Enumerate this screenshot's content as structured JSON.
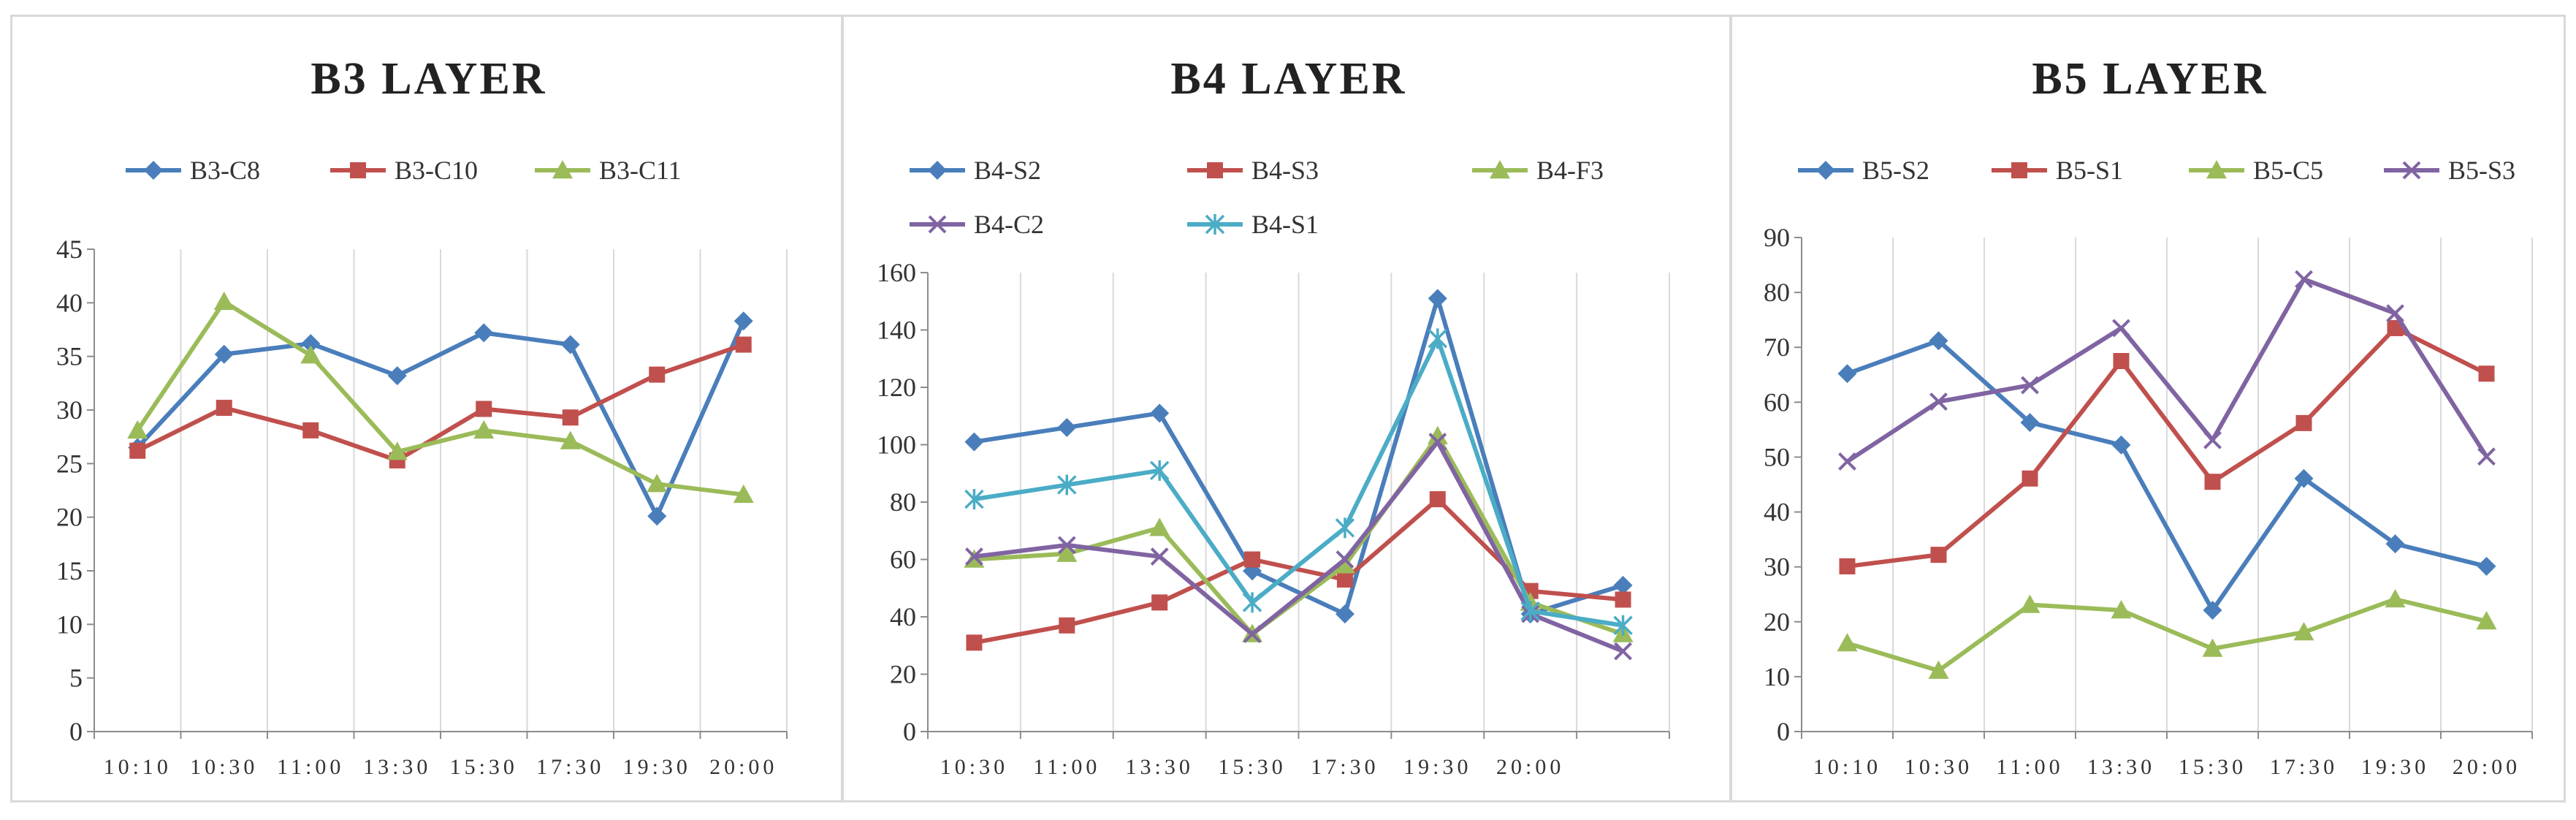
{
  "chart_data": [
    {
      "type": "line",
      "title": "B3 LAYER",
      "categories": [
        "10:10",
        "10:30",
        "11:00",
        "13:30",
        "15:30",
        "17:30",
        "19:30",
        "20:00"
      ],
      "ylim": [
        0,
        45
      ],
      "yticks": [
        0,
        5,
        10,
        15,
        20,
        25,
        30,
        35,
        40,
        45
      ],
      "grid": "vertical",
      "legend_position": "top",
      "series": [
        {
          "name": "B3-C8",
          "color": "#4a7ebb",
          "marker": "diamond",
          "values": [
            26.5,
            35.2,
            36.2,
            33.2,
            37.2,
            36.1,
            20.1,
            38.3
          ]
        },
        {
          "name": "B3-C10",
          "color": "#c0504d",
          "marker": "square",
          "values": [
            26.2,
            30.2,
            28.1,
            25.3,
            30.1,
            29.3,
            33.3,
            36.1
          ]
        },
        {
          "name": "B3-C11",
          "color": "#9bbb59",
          "marker": "triangle",
          "values": [
            28.1,
            40.1,
            35.1,
            26.1,
            28.1,
            27.1,
            23.1,
            22.1
          ]
        }
      ]
    },
    {
      "type": "line",
      "title": "B4 LAYER",
      "categories": [
        "10:30",
        "11:00",
        "13:30",
        "15:30",
        "17:30",
        "19:30",
        "20:00",
        ""
      ],
      "ylim": [
        0,
        160
      ],
      "yticks": [
        0,
        20,
        40,
        60,
        80,
        100,
        120,
        140,
        160
      ],
      "grid": "vertical",
      "legend_position": "top",
      "series": [
        {
          "name": "B4-S2",
          "color": "#4a7ebb",
          "marker": "diamond",
          "values": [
            101,
            106,
            111,
            56,
            41,
            151,
            41,
            51
          ]
        },
        {
          "name": "B4-S3",
          "color": "#c0504d",
          "marker": "square",
          "values": [
            31,
            37,
            45,
            60,
            53,
            81,
            49,
            46
          ]
        },
        {
          "name": "B4-F3",
          "color": "#9bbb59",
          "marker": "triangle",
          "values": [
            60,
            62,
            71,
            34,
            58,
            103,
            45,
            34
          ]
        },
        {
          "name": "B4-C2",
          "color": "#8064a2",
          "marker": "x",
          "values": [
            61,
            65,
            61,
            34,
            60,
            101,
            41,
            28
          ]
        },
        {
          "name": "B4-S1",
          "color": "#4bacc6",
          "marker": "star",
          "values": [
            81,
            86,
            91,
            45,
            71,
            137,
            42,
            37
          ]
        }
      ]
    },
    {
      "type": "line",
      "title": "B5 LAYER",
      "categories": [
        "10:10",
        "10:30",
        "11:00",
        "13:30",
        "15:30",
        "17:30",
        "19:30",
        "20:00"
      ],
      "ylim": [
        0,
        90
      ],
      "yticks": [
        0,
        10,
        20,
        30,
        40,
        50,
        60,
        70,
        80,
        90
      ],
      "grid": "vertical",
      "legend_position": "top",
      "series": [
        {
          "name": "B5-S2",
          "color": "#4a7ebb",
          "marker": "diamond",
          "values": [
            65.2,
            71.2,
            56.3,
            52.2,
            22.1,
            46.1,
            34.2,
            30.1
          ]
        },
        {
          "name": "B5-S1",
          "color": "#c0504d",
          "marker": "square",
          "values": [
            30.1,
            32.2,
            46.1,
            67.5,
            45.5,
            56.2,
            73.5,
            65.2
          ]
        },
        {
          "name": "B5-C5",
          "color": "#9bbb59",
          "marker": "triangle",
          "values": [
            16.1,
            11.1,
            23.1,
            22.1,
            15.1,
            18.1,
            24.1,
            20.1
          ]
        },
        {
          "name": "B5-S3",
          "color": "#8064a2",
          "marker": "x",
          "values": [
            49.2,
            60.1,
            63.1,
            73.5,
            53.1,
            82.4,
            76.2,
            50.1
          ]
        }
      ]
    }
  ]
}
